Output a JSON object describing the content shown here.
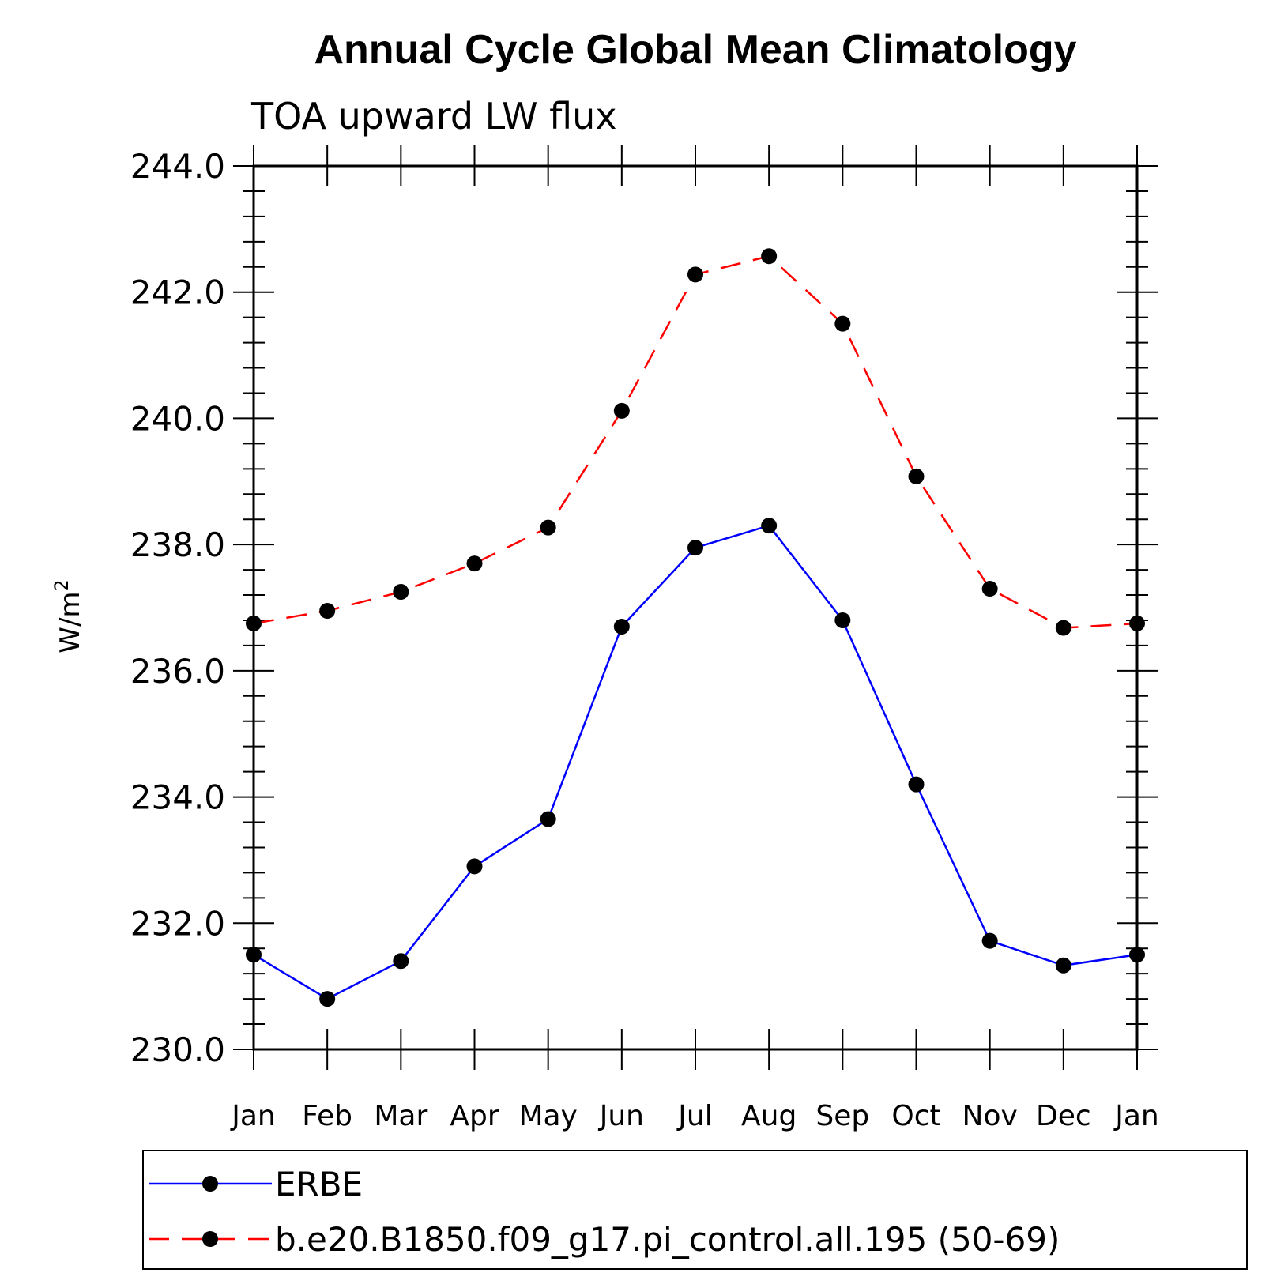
{
  "chart_data": {
    "type": "line",
    "title": "Annual Cycle Global Mean Climatology",
    "subtitle": "TOA upward LW flux",
    "ylabel_base": "W/m",
    "ylabel_sup": "2",
    "xlabel": "",
    "categories": [
      "Jan",
      "Feb",
      "Mar",
      "Apr",
      "May",
      "Jun",
      "Jul",
      "Aug",
      "Sep",
      "Oct",
      "Nov",
      "Dec",
      "Jan"
    ],
    "ylim": [
      230.0,
      244.0
    ],
    "yticks": [
      "230.0",
      "232.0",
      "234.0",
      "236.0",
      "238.0",
      "240.0",
      "242.0",
      "244.0"
    ],
    "ytick_values": [
      230,
      232,
      234,
      236,
      238,
      240,
      242,
      244
    ],
    "grid": false,
    "legend_position": "bottom",
    "series": [
      {
        "name": "ERBE",
        "color": "#0000ff",
        "dash": "solid",
        "marker": "filled-circle",
        "values": [
          231.5,
          230.8,
          231.4,
          232.9,
          233.65,
          236.7,
          237.95,
          238.3,
          236.8,
          234.2,
          231.72,
          231.33,
          231.5
        ]
      },
      {
        "name": "b.e20.B1850.f09_g17.pi_control.all.195 (50-69)",
        "color": "#ff0000",
        "dash": "dashed",
        "marker": "filled-circle",
        "values": [
          236.75,
          236.95,
          237.25,
          237.7,
          238.27,
          240.12,
          242.28,
          242.57,
          241.5,
          239.08,
          237.3,
          236.68,
          236.75
        ]
      }
    ]
  }
}
